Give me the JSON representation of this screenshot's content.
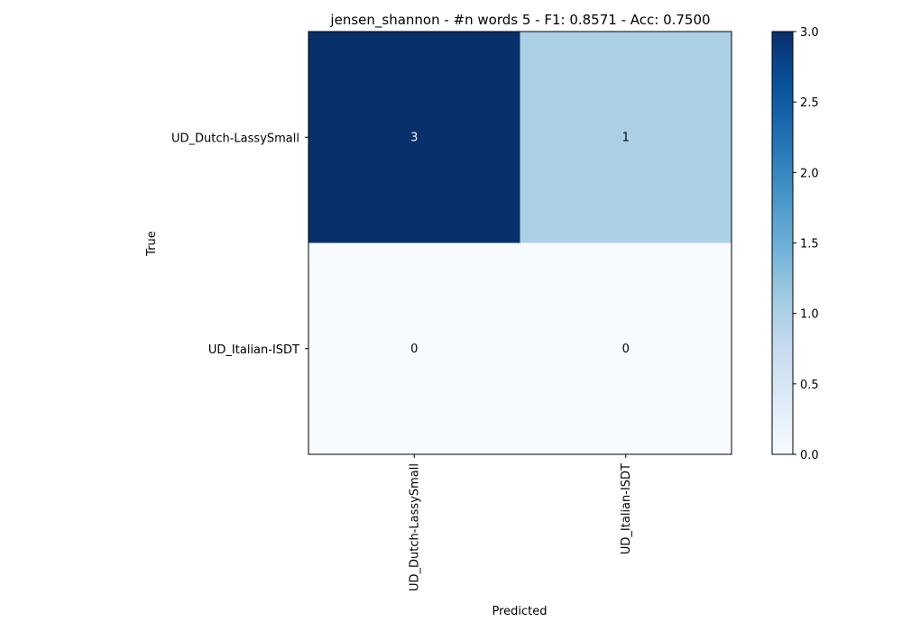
{
  "chart_data": {
    "type": "heatmap",
    "title": "jensen_shannon - #n words 5 - F1: 0.8571 - Acc: 0.7500",
    "xlabel": "Predicted",
    "ylabel": "True",
    "x_categories": [
      "UD_Dutch-LassySmall",
      "UD_Italian-ISDT"
    ],
    "y_categories": [
      "UD_Dutch-LassySmall",
      "UD_Italian-ISDT"
    ],
    "values": [
      [
        3,
        1
      ],
      [
        0,
        0
      ]
    ],
    "colorbar": {
      "range": [
        0.0,
        3.0
      ],
      "ticks": [
        "0.0",
        "0.5",
        "1.0",
        "1.5",
        "2.0",
        "2.5",
        "3.0"
      ],
      "colormap": "Blues"
    },
    "colors": {
      "min": "#f7fbff",
      "max": "#08306b"
    }
  }
}
